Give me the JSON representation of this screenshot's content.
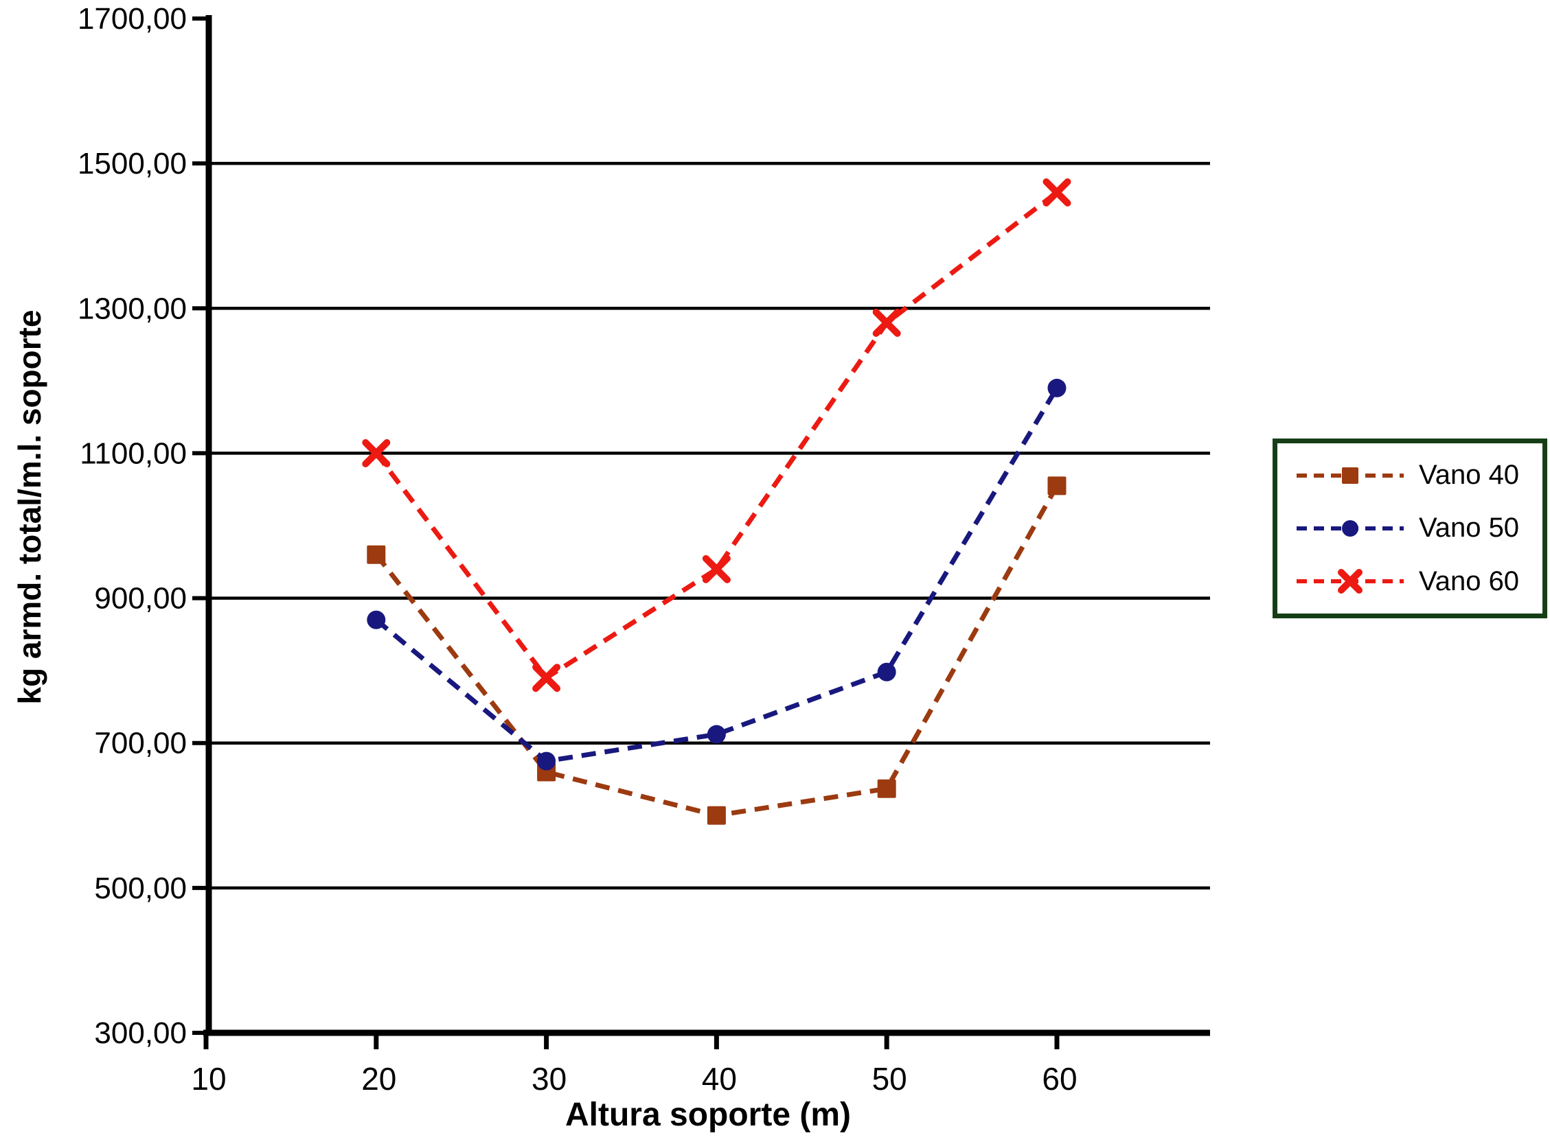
{
  "chart_data": {
    "type": "line",
    "title": "",
    "xlabel": "Altura soporte (m)",
    "ylabel": "kg armd. total/m.l. soporte",
    "x": [
      20,
      30,
      40,
      50,
      60
    ],
    "series": [
      {
        "name": "Vano 40",
        "marker": "square",
        "color": "#9C3A10",
        "values": [
          960,
          660,
          600,
          637,
          1055
        ]
      },
      {
        "name": "Vano 50",
        "marker": "circle",
        "color": "#18187E",
        "values": [
          870,
          675,
          712,
          798,
          1190
        ]
      },
      {
        "name": "Vano 60",
        "marker": "x",
        "color": "#EC1A12",
        "values": [
          1100,
          790,
          940,
          1280,
          1460
        ]
      }
    ],
    "xlim": [
      10,
      69
    ],
    "ylim": [
      300,
      1700
    ],
    "xticks": {
      "values": [
        10,
        20,
        30,
        40,
        50,
        60
      ],
      "labels": [
        "10",
        "20",
        "30",
        "40",
        "50",
        "60"
      ]
    },
    "yticks": {
      "values": [
        300,
        500,
        700,
        900,
        1100,
        1300,
        1500,
        1700
      ],
      "labels": [
        "300,00",
        "500,00",
        "700,00",
        "900,00",
        "1100,00",
        "1300,00",
        "1500,00",
        "1700,00"
      ]
    },
    "gridlines": [
      500,
      700,
      900,
      1100,
      1300,
      1500
    ],
    "grid": "horizontal-only",
    "line_style": "dashed",
    "axis_color": "#000000",
    "background_color": "#FFFFFF",
    "legend": {
      "position": "right",
      "border_color": "#163E16",
      "items": [
        "Vano 40",
        "Vano 50",
        "Vano 60"
      ]
    }
  }
}
